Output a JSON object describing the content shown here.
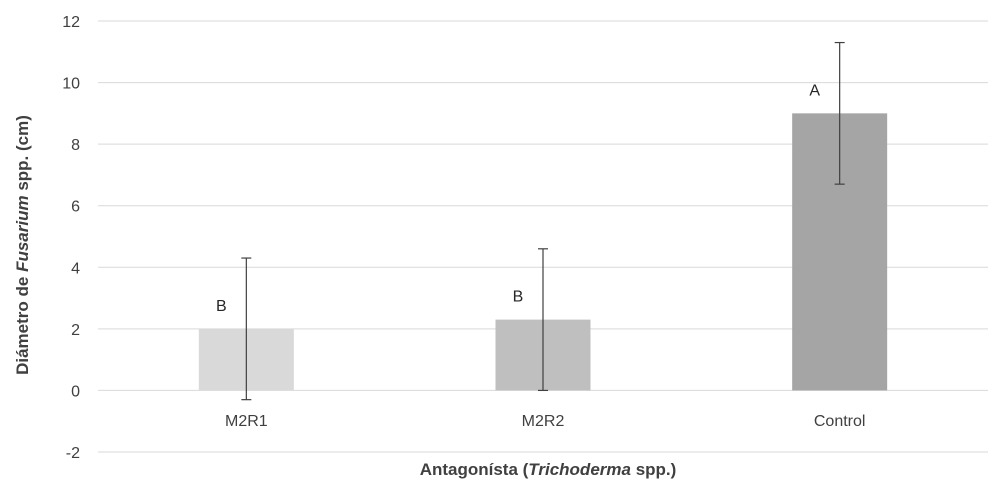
{
  "chart_data": {
    "type": "bar",
    "categories": [
      "M2R1",
      "M2R2",
      "Control"
    ],
    "values": [
      2.0,
      2.3,
      9.0
    ],
    "error_low": [
      -0.3,
      0.0,
      6.7
    ],
    "error_high": [
      4.3,
      4.6,
      11.3
    ],
    "significance_labels": [
      "B",
      "B",
      "A"
    ],
    "bar_colors": [
      "#d9d9d9",
      "#bfbfbf",
      "#a5a5a5"
    ],
    "ylim": [
      -2,
      12
    ],
    "yticks": [
      -2,
      0,
      2,
      4,
      6,
      8,
      10,
      12
    ],
    "grid": true,
    "ylabel": {
      "prefix": "Diámetro de ",
      "italic": "Fusarium",
      "suffix": " spp. (cm)"
    },
    "xlabel": {
      "prefix": "Antagonísta (",
      "italic": "Trichoderma",
      "suffix": " spp.)"
    }
  }
}
